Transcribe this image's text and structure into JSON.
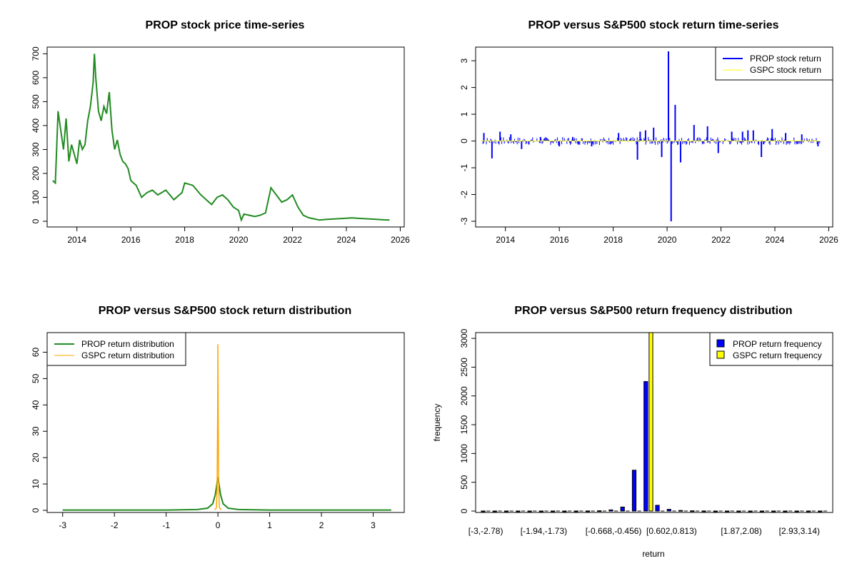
{
  "colors": {
    "price": "#228b22",
    "prop_return": "#0000ff",
    "gspc_return": "#ffff00",
    "prop_dist": "#228b22",
    "gspc_dist": "#ffa500",
    "prop_freq": "#0000ff",
    "gspc_freq": "#ffff00"
  },
  "chart_data": [
    {
      "type": "line",
      "title": "PROP stock price time-series",
      "xlabel": "",
      "ylabel": "",
      "xlim": [
        2013.0,
        2025.67
      ],
      "ylim": [
        0,
        710
      ],
      "x_ticks": [
        2014,
        2016,
        2018,
        2020,
        2022,
        2024,
        2026
      ],
      "y_ticks": [
        0,
        100,
        200,
        300,
        400,
        500,
        600,
        700
      ],
      "series": [
        {
          "name": "PROP price",
          "x": [
            2013.1,
            2013.2,
            2013.3,
            2013.4,
            2013.5,
            2013.6,
            2013.7,
            2013.8,
            2013.9,
            2014.0,
            2014.1,
            2014.2,
            2014.3,
            2014.4,
            2014.5,
            2014.6,
            2014.65,
            2014.7,
            2014.8,
            2014.9,
            2015.0,
            2015.1,
            2015.2,
            2015.3,
            2015.4,
            2015.5,
            2015.6,
            2015.7,
            2015.8,
            2015.9,
            2016.0,
            2016.2,
            2016.4,
            2016.6,
            2016.8,
            2017.0,
            2017.3,
            2017.6,
            2017.9,
            2018.0,
            2018.3,
            2018.6,
            2018.9,
            2019.0,
            2019.2,
            2019.4,
            2019.6,
            2019.8,
            2020.0,
            2020.1,
            2020.2,
            2020.4,
            2020.6,
            2020.8,
            2021.0,
            2021.2,
            2021.4,
            2021.6,
            2021.8,
            2022.0,
            2022.2,
            2022.4,
            2022.6,
            2022.8,
            2023.0,
            2023.3,
            2023.6,
            2023.9,
            2024.2,
            2024.5,
            2024.8,
            2025.1,
            2025.4,
            2025.6
          ],
          "values": [
            170,
            160,
            460,
            380,
            300,
            430,
            250,
            320,
            280,
            240,
            340,
            300,
            320,
            420,
            480,
            580,
            700,
            600,
            460,
            420,
            480,
            450,
            540,
            380,
            300,
            340,
            280,
            250,
            240,
            220,
            170,
            150,
            100,
            120,
            130,
            110,
            130,
            90,
            120,
            160,
            150,
            110,
            80,
            70,
            100,
            110,
            90,
            60,
            45,
            5,
            30,
            25,
            20,
            25,
            35,
            140,
            110,
            80,
            90,
            110,
            60,
            25,
            15,
            10,
            5,
            8,
            10,
            12,
            14,
            12,
            10,
            8,
            6,
            5
          ]
        }
      ]
    },
    {
      "type": "line",
      "title": "PROP versus S&P500 stock return time-series",
      "xlabel": "",
      "ylabel": "",
      "xlim": [
        2013.0,
        2025.67
      ],
      "ylim": [
        -3.0,
        3.35
      ],
      "x_ticks": [
        2014,
        2016,
        2018,
        2020,
        2022,
        2024,
        2026
      ],
      "y_ticks": [
        -3,
        -2,
        -1,
        0,
        1,
        2,
        3
      ],
      "legend": [
        "PROP stock return",
        "GSPC stock return"
      ],
      "legend_position": "top-right",
      "spikes": {
        "x": [
          2013.2,
          2013.5,
          2013.8,
          2014.2,
          2014.6,
          2015.3,
          2016.0,
          2016.5,
          2017.2,
          2018.2,
          2018.9,
          2019.0,
          2019.2,
          2019.5,
          2019.8,
          2020.05,
          2020.15,
          2020.3,
          2020.5,
          2021.0,
          2021.5,
          2021.9,
          2022.4,
          2022.8,
          2023.0,
          2023.2,
          2023.5,
          2023.9,
          2024.4,
          2025.0,
          2025.6
        ],
        "values": [
          0.3,
          -0.65,
          0.35,
          0.25,
          -0.3,
          0.15,
          -0.2,
          0.15,
          -0.2,
          0.3,
          -0.7,
          0.35,
          0.4,
          0.5,
          -0.6,
          3.35,
          -3.0,
          1.35,
          -0.8,
          0.6,
          0.55,
          -0.45,
          0.35,
          0.35,
          0.4,
          0.4,
          -0.6,
          0.45,
          0.3,
          0.25,
          -0.2
        ]
      }
    },
    {
      "type": "line",
      "title": "PROP versus S&P500 stock return distribution",
      "xlabel": "",
      "ylabel": "",
      "xlim": [
        -3.3,
        3.6
      ],
      "ylim": [
        0,
        65
      ],
      "x_ticks": [
        -3,
        -2,
        -1,
        0,
        1,
        2,
        3
      ],
      "y_ticks": [
        0,
        10,
        20,
        30,
        40,
        50,
        60
      ],
      "legend": [
        "PROP return distribution",
        "GSPC return distribution"
      ],
      "legend_position": "top-left",
      "series": [
        {
          "name": "PROP return distribution",
          "x": [
            -3.0,
            -1.0,
            -0.4,
            -0.2,
            -0.1,
            -0.05,
            -0.02,
            0.0,
            0.02,
            0.05,
            0.1,
            0.2,
            0.4,
            1.0,
            3.35
          ],
          "values": [
            0.1,
            0.1,
            0.3,
            0.8,
            2.5,
            6.0,
            10.0,
            12.5,
            10.0,
            6.0,
            2.5,
            0.8,
            0.3,
            0.1,
            0.1
          ]
        },
        {
          "name": "GSPC return distribution",
          "x": [
            -0.06,
            -0.03,
            -0.015,
            -0.005,
            0.0,
            0.005,
            0.015,
            0.03,
            0.06
          ],
          "values": [
            0.2,
            1.0,
            8.0,
            40.0,
            63.0,
            40.0,
            8.0,
            1.0,
            0.2
          ]
        }
      ]
    },
    {
      "type": "bar",
      "title": "PROP versus S&P500 return frequency distribution",
      "xlabel": "return",
      "ylabel": "frequency",
      "ylim": [
        0,
        3100
      ],
      "y_ticks": [
        0,
        500,
        1000,
        1500,
        2000,
        2500,
        3000
      ],
      "tick_labels": [
        "[-3,-2.78)",
        "[-1.94,-1.73)",
        "[-0.668,-0.456)",
        "[0.602,0.813)",
        "[1.87,2.08)",
        "[2.93,3.14)"
      ],
      "tick_label_bins": [
        0,
        5,
        11,
        16,
        22,
        27
      ],
      "legend": [
        "PROP return frequency",
        "GSPC return frequency"
      ],
      "legend_position": "top-right",
      "categories_count": 30,
      "series": [
        {
          "name": "PROP return frequency",
          "values": [
            1,
            1,
            1,
            1,
            1,
            1,
            1,
            1,
            1,
            2,
            5,
            20,
            70,
            710,
            2250,
            100,
            30,
            10,
            4,
            2,
            1,
            1,
            1,
            1,
            1,
            1,
            1,
            1,
            1,
            1
          ]
        },
        {
          "name": "GSPC return frequency",
          "values": [
            0,
            0,
            0,
            0,
            0,
            0,
            0,
            0,
            0,
            0,
            0,
            0,
            0,
            0,
            3100,
            0,
            0,
            0,
            0,
            0,
            0,
            0,
            0,
            0,
            0,
            0,
            0,
            0,
            0,
            0
          ]
        }
      ]
    }
  ]
}
